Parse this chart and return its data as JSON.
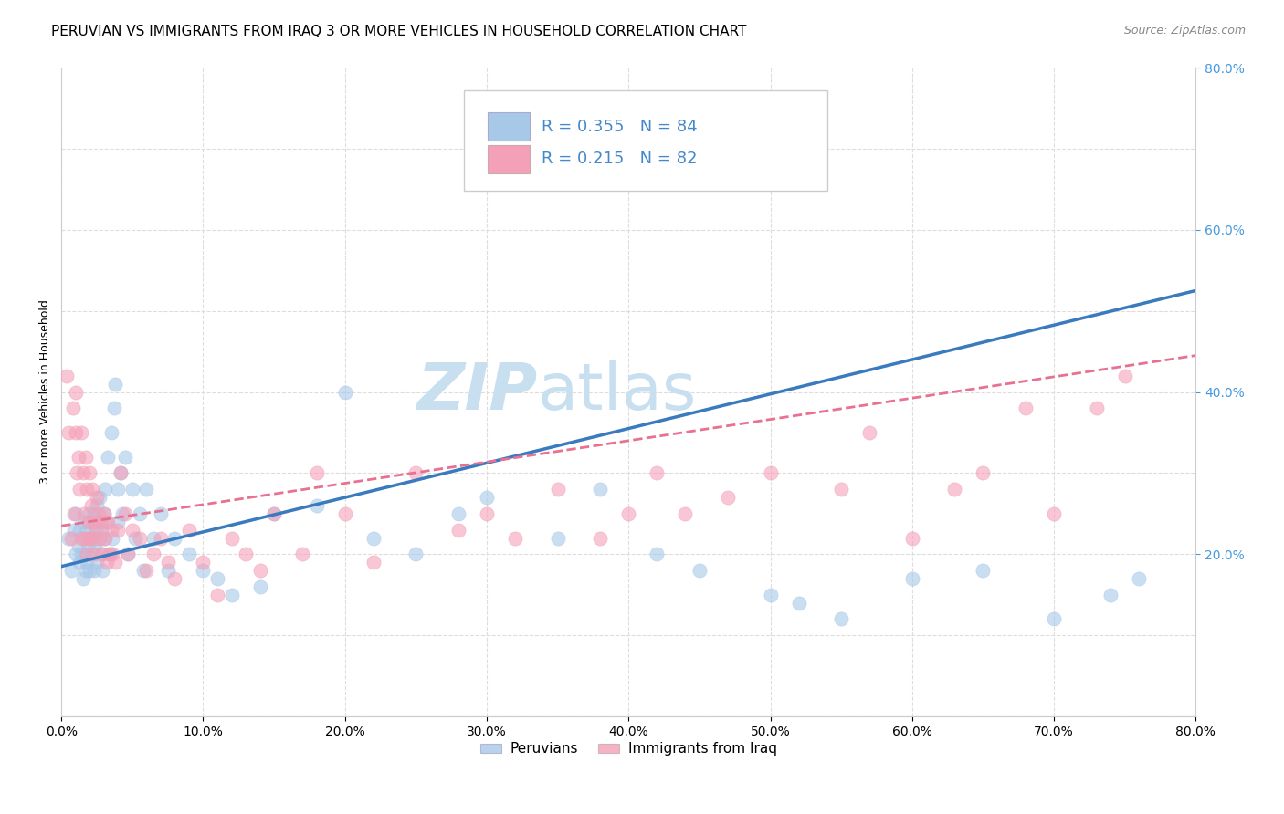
{
  "title": "PERUVIAN VS IMMIGRANTS FROM IRAQ 3 OR MORE VEHICLES IN HOUSEHOLD CORRELATION CHART",
  "source": "Source: ZipAtlas.com",
  "ylabel": "3 or more Vehicles in Household",
  "legend_label1": "Peruvians",
  "legend_label2": "Immigrants from Iraq",
  "r1": 0.355,
  "n1": 84,
  "r2": 0.215,
  "n2": 82,
  "color_blue": "#a8c8e8",
  "color_pink": "#f4a0b8",
  "color_blue_line": "#3a7abf",
  "color_pink_line": "#e87090",
  "color_legend_text": "#4488cc",
  "xlim": [
    0.0,
    0.8
  ],
  "ylim": [
    0.0,
    0.8
  ],
  "xticks": [
    0.0,
    0.1,
    0.2,
    0.3,
    0.4,
    0.5,
    0.6,
    0.7,
    0.8
  ],
  "yticks": [
    0.2,
    0.4,
    0.6,
    0.8
  ],
  "yticks_grid": [
    0.0,
    0.1,
    0.2,
    0.3,
    0.4,
    0.5,
    0.6,
    0.7,
    0.8
  ],
  "watermark_zip": "ZIP",
  "watermark_atlas": "atlas",
  "watermark_color": "#c8dff0",
  "watermark_fontsize": 52,
  "blue_scatter_x": [
    0.005,
    0.007,
    0.009,
    0.01,
    0.01,
    0.012,
    0.013,
    0.013,
    0.014,
    0.015,
    0.015,
    0.016,
    0.016,
    0.017,
    0.018,
    0.018,
    0.019,
    0.02,
    0.02,
    0.02,
    0.021,
    0.022,
    0.022,
    0.023,
    0.023,
    0.024,
    0.024,
    0.025,
    0.025,
    0.026,
    0.026,
    0.027,
    0.028,
    0.028,
    0.029,
    0.03,
    0.03,
    0.031,
    0.032,
    0.033,
    0.034,
    0.035,
    0.036,
    0.037,
    0.038,
    0.04,
    0.04,
    0.042,
    0.043,
    0.045,
    0.047,
    0.05,
    0.052,
    0.055,
    0.058,
    0.06,
    0.065,
    0.07,
    0.075,
    0.08,
    0.09,
    0.1,
    0.11,
    0.12,
    0.14,
    0.15,
    0.18,
    0.2,
    0.22,
    0.25,
    0.28,
    0.3,
    0.35,
    0.38,
    0.42,
    0.45,
    0.5,
    0.52,
    0.55,
    0.6,
    0.65,
    0.7,
    0.74,
    0.76
  ],
  "blue_scatter_y": [
    0.22,
    0.18,
    0.23,
    0.25,
    0.2,
    0.21,
    0.19,
    0.23,
    0.2,
    0.22,
    0.17,
    0.24,
    0.2,
    0.18,
    0.23,
    0.19,
    0.21,
    0.25,
    0.22,
    0.18,
    0.24,
    0.2,
    0.22,
    0.18,
    0.25,
    0.21,
    0.23,
    0.19,
    0.26,
    0.22,
    0.24,
    0.27,
    0.2,
    0.23,
    0.18,
    0.25,
    0.22,
    0.28,
    0.24,
    0.32,
    0.2,
    0.35,
    0.22,
    0.38,
    0.41,
    0.28,
    0.24,
    0.3,
    0.25,
    0.32,
    0.2,
    0.28,
    0.22,
    0.25,
    0.18,
    0.28,
    0.22,
    0.25,
    0.18,
    0.22,
    0.2,
    0.18,
    0.17,
    0.15,
    0.16,
    0.25,
    0.26,
    0.4,
    0.22,
    0.2,
    0.25,
    0.27,
    0.22,
    0.28,
    0.2,
    0.18,
    0.15,
    0.14,
    0.12,
    0.17,
    0.18,
    0.12,
    0.15,
    0.17
  ],
  "pink_scatter_x": [
    0.004,
    0.005,
    0.007,
    0.008,
    0.009,
    0.01,
    0.01,
    0.011,
    0.012,
    0.013,
    0.014,
    0.014,
    0.015,
    0.016,
    0.017,
    0.017,
    0.018,
    0.018,
    0.019,
    0.02,
    0.02,
    0.021,
    0.022,
    0.022,
    0.023,
    0.024,
    0.025,
    0.025,
    0.026,
    0.027,
    0.028,
    0.029,
    0.03,
    0.031,
    0.032,
    0.033,
    0.034,
    0.035,
    0.036,
    0.038,
    0.04,
    0.042,
    0.045,
    0.047,
    0.05,
    0.055,
    0.06,
    0.065,
    0.07,
    0.075,
    0.08,
    0.09,
    0.1,
    0.11,
    0.12,
    0.13,
    0.14,
    0.15,
    0.17,
    0.18,
    0.2,
    0.22,
    0.25,
    0.28,
    0.3,
    0.32,
    0.35,
    0.38,
    0.4,
    0.42,
    0.44,
    0.47,
    0.5,
    0.55,
    0.57,
    0.6,
    0.63,
    0.65,
    0.68,
    0.7,
    0.73,
    0.75
  ],
  "pink_scatter_y": [
    0.42,
    0.35,
    0.22,
    0.38,
    0.25,
    0.4,
    0.35,
    0.3,
    0.32,
    0.28,
    0.35,
    0.22,
    0.3,
    0.25,
    0.22,
    0.32,
    0.2,
    0.28,
    0.24,
    0.3,
    0.22,
    0.26,
    0.28,
    0.22,
    0.24,
    0.2,
    0.27,
    0.23,
    0.25,
    0.22,
    0.24,
    0.2,
    0.25,
    0.22,
    0.19,
    0.24,
    0.2,
    0.23,
    0.2,
    0.19,
    0.23,
    0.3,
    0.25,
    0.2,
    0.23,
    0.22,
    0.18,
    0.2,
    0.22,
    0.19,
    0.17,
    0.23,
    0.19,
    0.15,
    0.22,
    0.2,
    0.18,
    0.25,
    0.2,
    0.3,
    0.25,
    0.19,
    0.3,
    0.23,
    0.25,
    0.22,
    0.28,
    0.22,
    0.25,
    0.3,
    0.25,
    0.27,
    0.3,
    0.28,
    0.35,
    0.22,
    0.28,
    0.3,
    0.38,
    0.25,
    0.38,
    0.42
  ],
  "blue_trend_y_start": 0.185,
  "blue_trend_y_end": 0.525,
  "pink_trend_y_start": 0.235,
  "pink_trend_y_end": 0.445,
  "title_fontsize": 11,
  "axis_label_fontsize": 9,
  "tick_fontsize": 10,
  "right_tick_color": "#4499dd",
  "grid_color": "#dddddd"
}
